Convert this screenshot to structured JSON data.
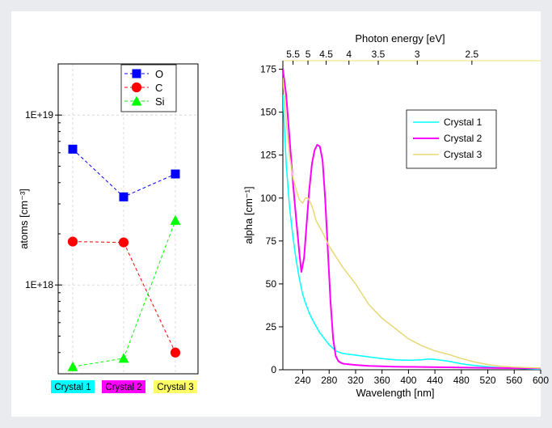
{
  "chart_data": [
    {
      "type": "scatter",
      "ylabel": "atoms [cm⁻³]",
      "yscale": "log",
      "ylim": [
        300000000000000000,
        20000000000000000000
      ],
      "grid": true,
      "legend_placement": "top-right",
      "categories": [
        {
          "label": "Crystal 1",
          "color": "#00ffff"
        },
        {
          "label": "Crystal 2",
          "color": "#ff00ff"
        },
        {
          "label": "Crystal 3",
          "color": "#ffff66"
        }
      ],
      "y_ticks": [
        {
          "label": "1E+19",
          "value": 10000000000000000000
        },
        {
          "label": "1E+18",
          "value": 1000000000000000000
        }
      ],
      "series": [
        {
          "name": "O",
          "marker": "square",
          "color": "#0000ff",
          "values": [
            6300000000000000000,
            3300000000000000000,
            4500000000000000000
          ]
        },
        {
          "name": "C",
          "marker": "circle",
          "color": "#ff0000",
          "values": [
            1800000000000000000,
            1780000000000000000,
            400000000000000000
          ]
        },
        {
          "name": "Si",
          "marker": "triangle",
          "color": "#00ff00",
          "values": [
            330000000000000000,
            370000000000000000,
            2400000000000000000
          ]
        }
      ]
    },
    {
      "type": "line",
      "xlabel": "Wavelength [nm]",
      "ylabel": "alpha [cm⁻¹]",
      "xlim": [
        210,
        600
      ],
      "ylim": [
        0,
        180
      ],
      "x_ticks": [
        240,
        280,
        320,
        360,
        400,
        440,
        480,
        520,
        560,
        600
      ],
      "y_ticks": [
        0,
        25,
        50,
        75,
        100,
        125,
        150,
        175
      ],
      "top_axis": {
        "label": "Photon energy [eV]",
        "ticks": [
          {
            "label": "5.5",
            "value": 5.5
          },
          {
            "label": "5",
            "value": 5
          },
          {
            "label": "4.5",
            "value": 4.5
          },
          {
            "label": "4",
            "value": 4
          },
          {
            "label": "3.5",
            "value": 3.5
          },
          {
            "label": "3",
            "value": 3
          },
          {
            "label": "2.5",
            "value": 2.5
          }
        ]
      },
      "legend_placement": "top-right",
      "series": [
        {
          "name": "Crystal 1",
          "color": "#00ffff",
          "x": [
            210,
            215,
            220,
            225,
            230,
            235,
            240,
            245,
            250,
            255,
            260,
            265,
            270,
            275,
            280,
            290,
            300,
            320,
            340,
            360,
            380,
            400,
            420,
            430,
            440,
            460,
            480,
            500,
            520,
            540,
            560,
            580,
            600
          ],
          "y": [
            160,
            120,
            95,
            78,
            64,
            53,
            44,
            38,
            33,
            29,
            25.5,
            22,
            19.5,
            17,
            14.5,
            11,
            9.5,
            8.5,
            7.5,
            6.5,
            5.8,
            5.5,
            5.8,
            6.2,
            6,
            5,
            3.5,
            2.5,
            1.8,
            1.2,
            0.8,
            0.5,
            0.3
          ]
        },
        {
          "name": "Crystal 2",
          "color": "#ff00ff",
          "x": [
            210,
            215,
            220,
            225,
            230,
            235,
            238,
            242,
            246,
            250,
            254,
            258,
            262,
            266,
            270,
            274,
            278,
            282,
            286,
            290,
            294,
            298,
            302,
            320,
            340,
            380,
            420,
            460,
            500,
            540,
            600
          ],
          "y": [
            175,
            160,
            135,
            110,
            88,
            68,
            57,
            65,
            85,
            105,
            120,
            128,
            131,
            130,
            122,
            100,
            70,
            40,
            18,
            8,
            5,
            4,
            3.5,
            2.8,
            2.2,
            1.8,
            1.6,
            1.4,
            1.2,
            1,
            0.8
          ]
        },
        {
          "name": "Crystal 3",
          "color": "#e8d877",
          "x": [
            210,
            215,
            220,
            225,
            230,
            235,
            240,
            244,
            248,
            252,
            256,
            260,
            270,
            280,
            300,
            320,
            340,
            360,
            380,
            400,
            420,
            440,
            460,
            480,
            500,
            520,
            540,
            560,
            600
          ],
          "y": [
            170,
            145,
            125,
            112,
            105,
            99,
            97,
            100,
            100,
            97,
            93,
            87,
            80,
            72,
            60,
            50,
            38,
            30,
            24,
            18,
            14,
            11,
            9,
            6.5,
            4.5,
            3,
            2,
            1.5,
            1
          ]
        }
      ]
    }
  ]
}
